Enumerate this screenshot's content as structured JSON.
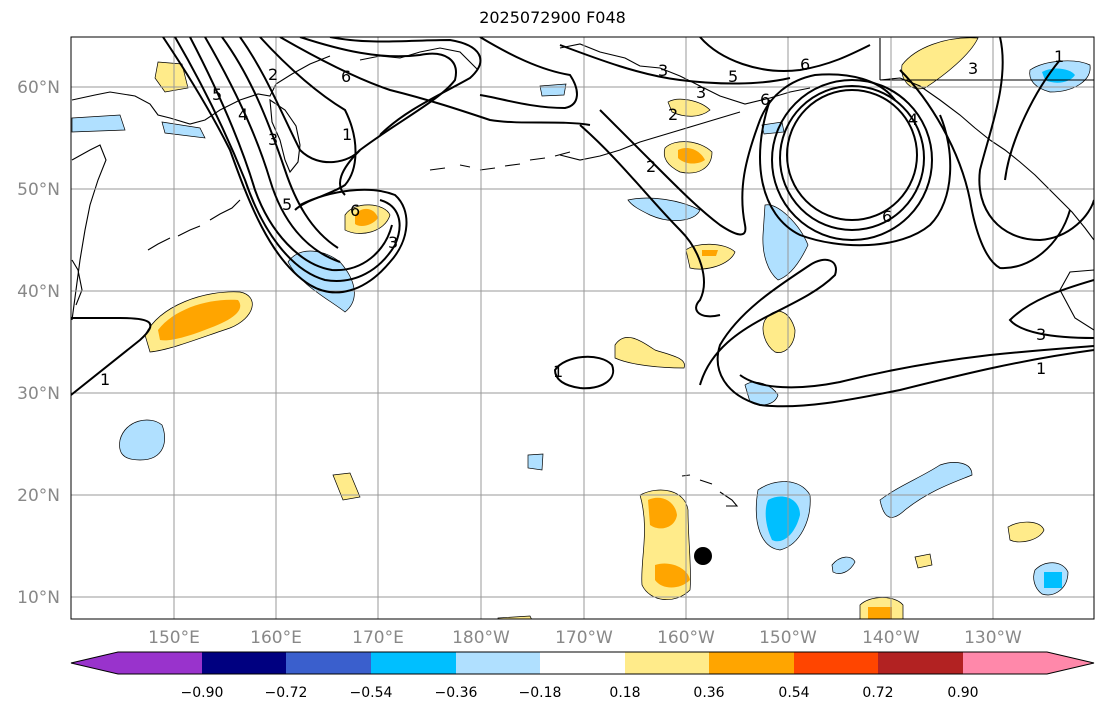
{
  "title": "2025072900 F048",
  "lat_labels": [
    "60°N",
    "50°N",
    "40°N",
    "30°N",
    "20°N",
    "10°N"
  ],
  "lon_labels": [
    "150°E",
    "160°E",
    "170°E",
    "180°W",
    "170°W",
    "160°W",
    "150°W",
    "140°W",
    "130°W"
  ],
  "colorbar": {
    "tick_labels": [
      "−0.90",
      "−0.72",
      "−0.54",
      "−0.36",
      "−0.18",
      "0.18",
      "0.36",
      "0.54",
      "0.72",
      "0.90"
    ],
    "colors": [
      "#9933cc",
      "#000080",
      "#3a5fcd",
      "#00bfff",
      "#b0e0ff",
      "#ffffff",
      "#ffeb8a",
      "#ffa500",
      "#ff4500",
      "#b22222",
      "#ff88aa"
    ]
  },
  "contour_labels": [
    "6",
    "6",
    "3",
    "2",
    "1",
    "5",
    "4",
    "3",
    "1",
    "2",
    "5",
    "6",
    "3",
    "5",
    "6",
    "3",
    "2",
    "3",
    "1",
    "1",
    "6",
    "4",
    "3",
    "1"
  ],
  "colors": {
    "positive": "#ffa500",
    "positive_light": "#ffeb8a",
    "negative": "#00bfff",
    "negative_light": "#b0e0ff",
    "marker": "#000000"
  }
}
